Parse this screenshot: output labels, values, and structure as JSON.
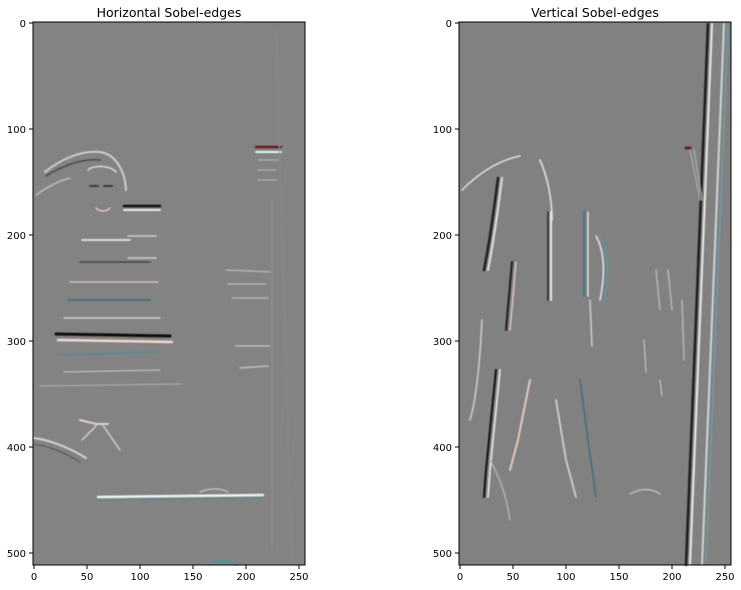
{
  "figure": {
    "panels": [
      {
        "title": "Horizontal Sobel-edges",
        "image_description": "horizontal sobel edge response of a mirror selfie photo",
        "x_ticks": [
          "0",
          "50",
          "100",
          "150",
          "200",
          "250"
        ],
        "y_ticks": [
          "0",
          "100",
          "200",
          "300",
          "400",
          "500"
        ],
        "background_color": "#838383"
      },
      {
        "title": "Vertical Sobel-edges",
        "image_description": "vertical sobel edge response of a mirror selfie photo",
        "x_ticks": [
          "0",
          "50",
          "100",
          "150",
          "200",
          "250"
        ],
        "y_ticks": [
          "0",
          "100",
          "200",
          "300",
          "400",
          "500"
        ],
        "background_color": "#818181"
      }
    ],
    "x_range": [
      0,
      256
    ],
    "y_range": [
      0,
      512
    ]
  }
}
